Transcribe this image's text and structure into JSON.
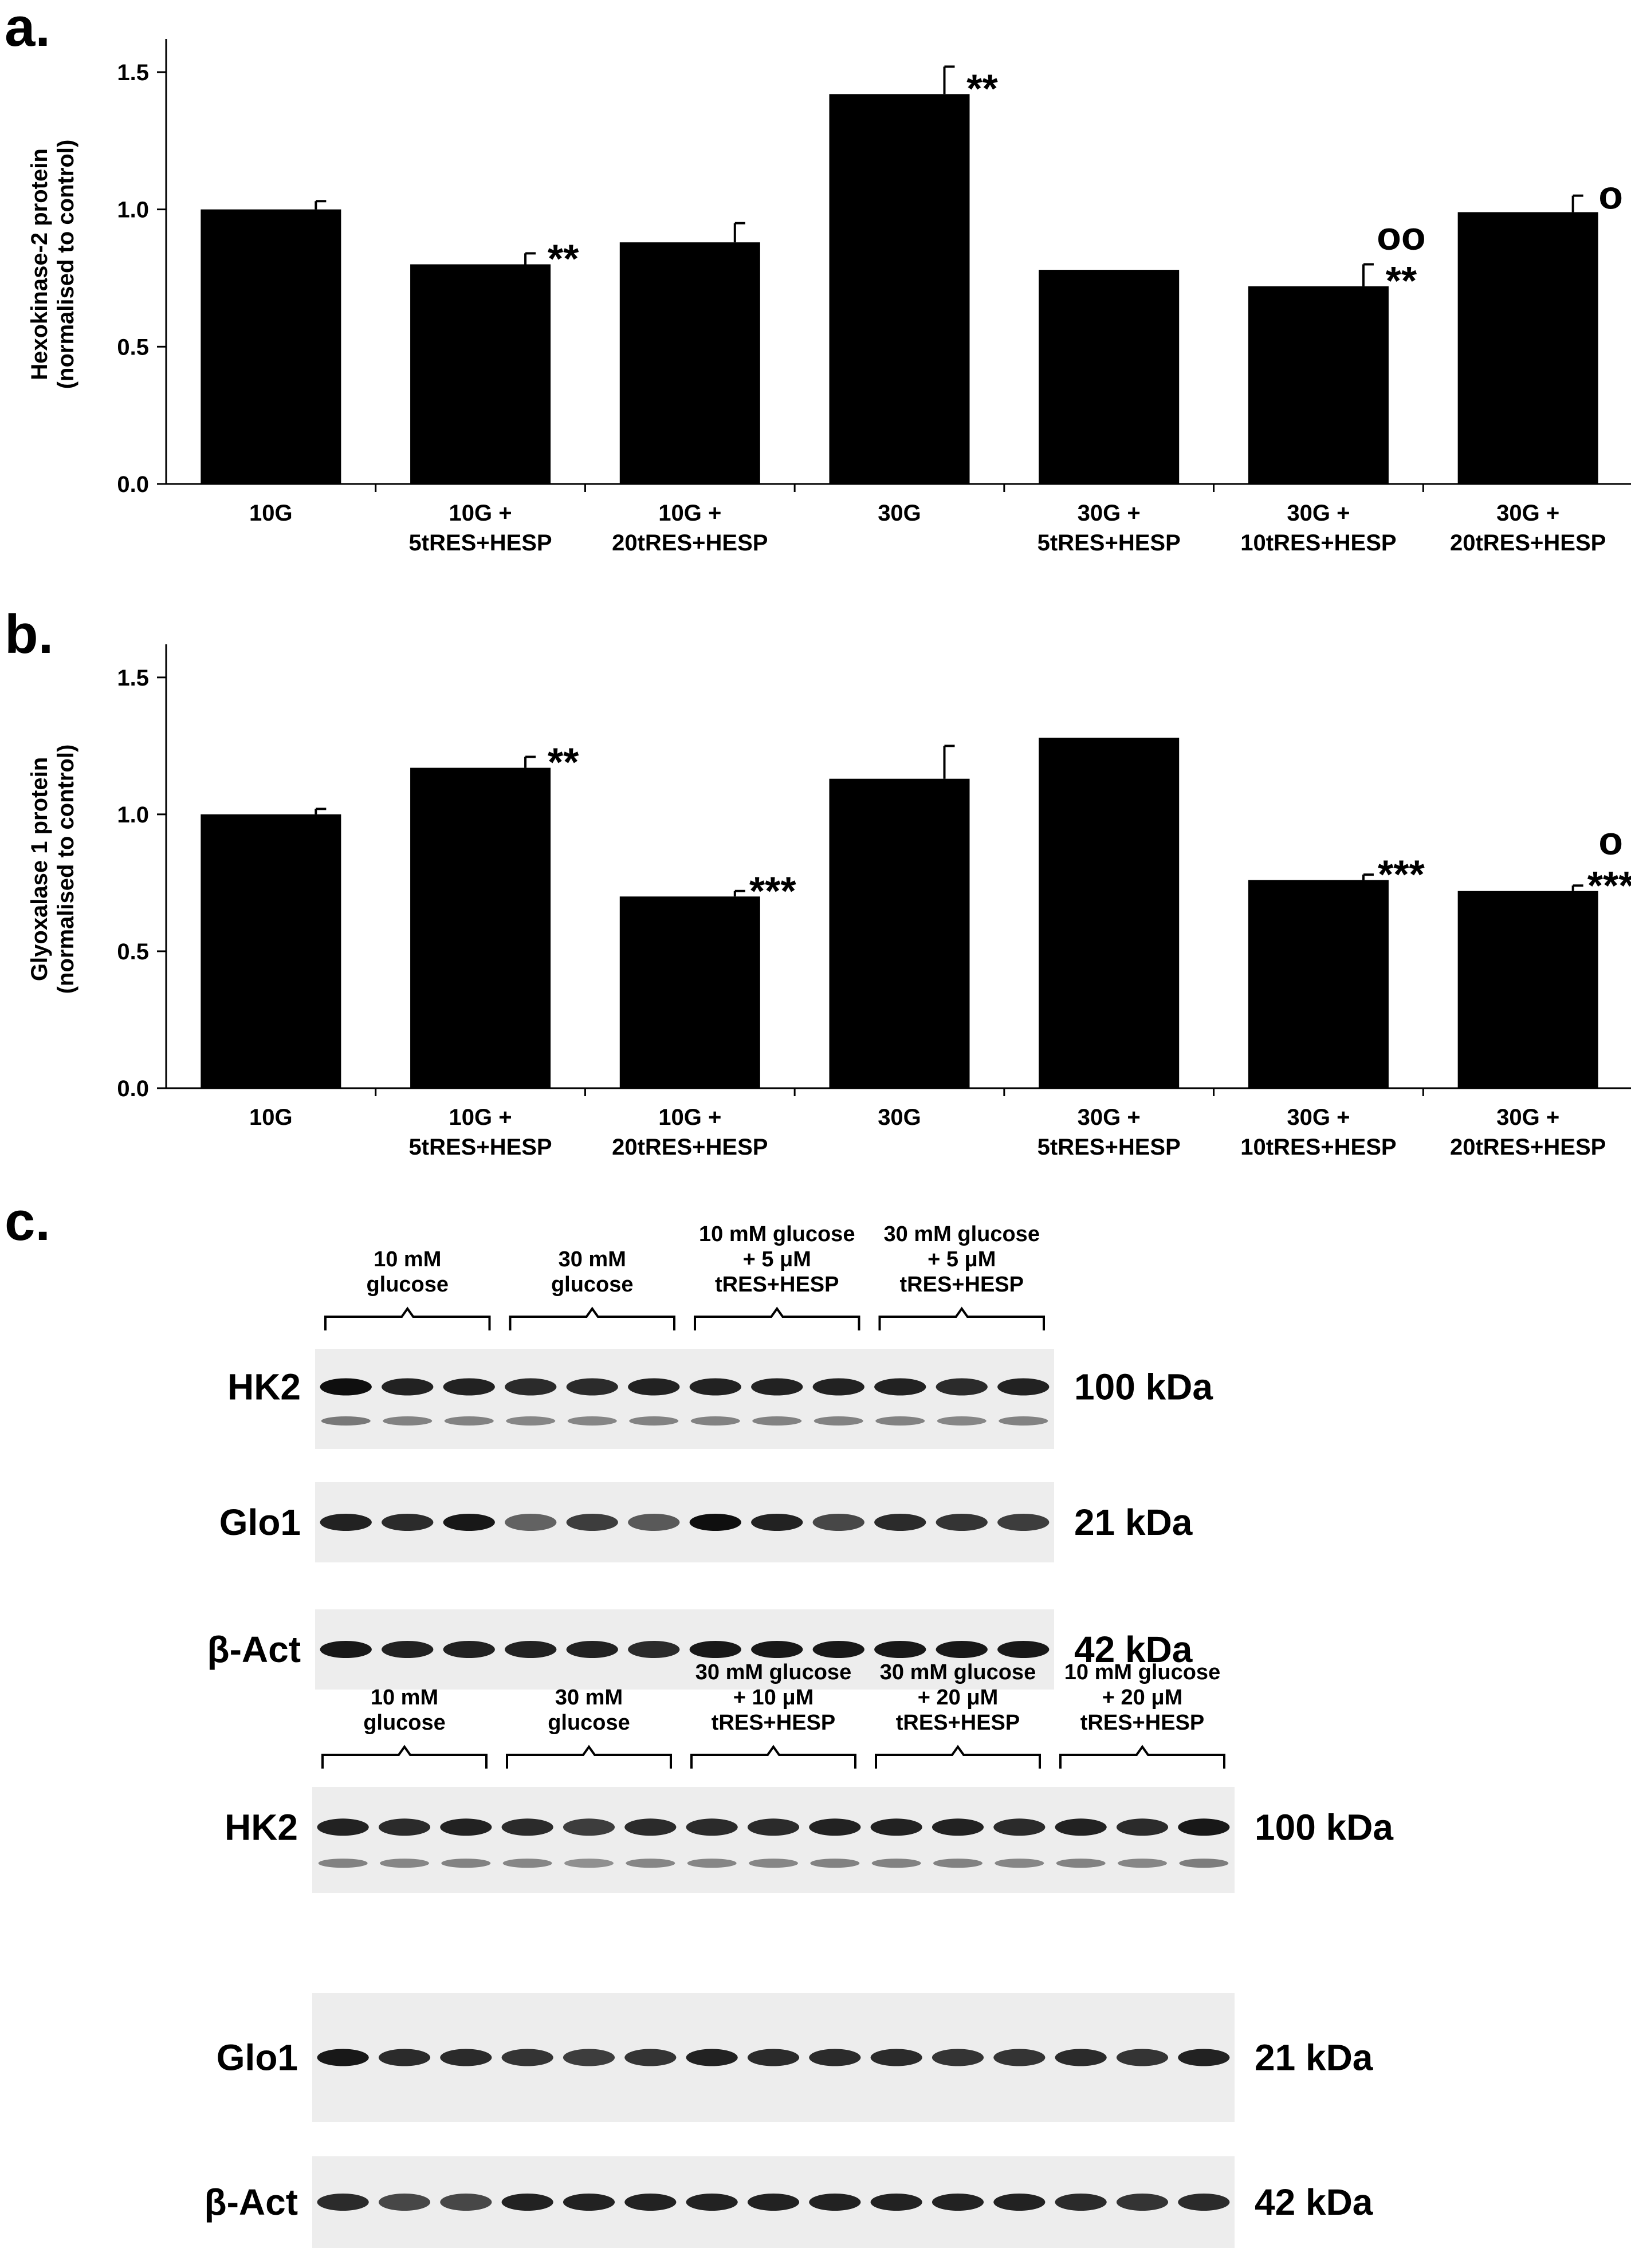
{
  "panel_labels": {
    "a": "a.",
    "b": "b.",
    "c": "c."
  },
  "chart_data": [
    {
      "type": "bar",
      "title": "",
      "xlabel": "",
      "ylabel": [
        "Hexokinase-2 protein",
        "(normalised to control)"
      ],
      "ylim": [
        0,
        1.6
      ],
      "yticks": [
        "0.0",
        "0.5",
        "1.0",
        "1.5"
      ],
      "ytick_values": [
        0,
        0.5,
        1.0,
        1.5
      ],
      "categories": [
        [
          "10G"
        ],
        [
          "10G +",
          "5tRES+HESP"
        ],
        [
          "10G +",
          "20tRES+HESP"
        ],
        [
          "30G"
        ],
        [
          "30G +",
          "5tRES+HESP"
        ],
        [
          "30G +",
          "10tRES+HESP"
        ],
        [
          "30G +",
          "20tRES+HESP"
        ]
      ],
      "values": [
        1.0,
        0.8,
        0.88,
        1.42,
        0.78,
        0.72,
        0.99
      ],
      "errors": [
        0.03,
        0.04,
        0.07,
        0.1,
        0,
        0.08,
        0.06
      ],
      "annotations": [
        [],
        [
          "**"
        ],
        [],
        [
          "**"
        ],
        [],
        [
          "oo",
          "**"
        ],
        [
          "o"
        ]
      ],
      "color": "#000000"
    },
    {
      "type": "bar",
      "title": "",
      "xlabel": "",
      "ylabel": [
        "Glyoxalase 1 protein",
        "(normalised to control)"
      ],
      "ylim": [
        0,
        1.6
      ],
      "yticks": [
        "0.0",
        "0.5",
        "1.0",
        "1.5"
      ],
      "ytick_values": [
        0,
        0.5,
        1.0,
        1.5
      ],
      "categories": [
        [
          "10G"
        ],
        [
          "10G +",
          "5tRES+HESP"
        ],
        [
          "10G +",
          "20tRES+HESP"
        ],
        [
          "30G"
        ],
        [
          "30G +",
          "5tRES+HESP"
        ],
        [
          "30G +",
          "10tRES+HESP"
        ],
        [
          "30G +",
          "20tRES+HESP"
        ]
      ],
      "values": [
        1.0,
        1.17,
        0.7,
        1.13,
        1.28,
        0.76,
        0.72
      ],
      "errors": [
        0.02,
        0.04,
        0.02,
        0.12,
        0,
        0.02,
        0.02
      ],
      "annotations": [
        [],
        [
          "**"
        ],
        [
          "***"
        ],
        [],
        [],
        [
          "***"
        ],
        [
          "o",
          "***"
        ]
      ],
      "color": "#000000"
    }
  ],
  "blots": [
    {
      "groups": [
        [
          "10 mM",
          "glucose"
        ],
        [
          "30 mM",
          "glucose"
        ],
        [
          "10 mM glucose",
          "+ 5 μM",
          "tRES+HESP"
        ],
        [
          "30 mM glucose",
          "+ 5 μM",
          "tRES+HESP"
        ]
      ],
      "rows": [
        {
          "label": "HK2",
          "size": "100 kDa",
          "double_band": true,
          "intensity": [
            1.0,
            0.9,
            0.9,
            0.85,
            0.85,
            0.9,
            0.9,
            0.9,
            0.9,
            0.9,
            0.85,
            0.9
          ]
        },
        {
          "label": "Glo1",
          "size": "21 kDa",
          "double_band": false,
          "intensity": [
            0.9,
            0.85,
            0.95,
            0.55,
            0.75,
            0.6,
            1.0,
            0.9,
            0.7,
            0.85,
            0.8,
            0.75
          ]
        },
        {
          "label": "β-Act",
          "size": "42 kDa",
          "double_band": false,
          "intensity": [
            0.95,
            0.9,
            0.9,
            0.9,
            0.9,
            0.85,
            0.95,
            0.95,
            0.95,
            0.95,
            0.95,
            0.95
          ]
        }
      ]
    },
    {
      "groups": [
        [
          "10 mM",
          "glucose"
        ],
        [
          "30 mM",
          "glucose"
        ],
        [
          "30 mM glucose",
          "+ 10 μM",
          "tRES+HESP"
        ],
        [
          "30 mM glucose",
          "+ 20 μM",
          "tRES+HESP"
        ],
        [
          "10 mM glucose",
          "+ 20 μM",
          "tRES+HESP"
        ]
      ],
      "rows": [
        {
          "label": "HK2",
          "size": "100 kDa",
          "double_band": true,
          "intensity": [
            0.9,
            0.85,
            0.9,
            0.85,
            0.75,
            0.85,
            0.85,
            0.85,
            0.9,
            0.9,
            0.9,
            0.85,
            0.9,
            0.85,
            0.95
          ]
        },
        {
          "label": "Glo1",
          "size": "21 kDa",
          "double_band": false,
          "intensity": [
            0.95,
            0.85,
            0.85,
            0.8,
            0.75,
            0.8,
            0.9,
            0.85,
            0.85,
            0.85,
            0.8,
            0.8,
            0.85,
            0.8,
            0.9
          ]
        },
        {
          "label": "β-Act",
          "size": "42 kDa",
          "double_band": false,
          "intensity": [
            0.85,
            0.7,
            0.7,
            0.9,
            0.9,
            0.9,
            0.9,
            0.9,
            0.9,
            0.9,
            0.9,
            0.9,
            0.85,
            0.8,
            0.85
          ]
        }
      ]
    }
  ]
}
